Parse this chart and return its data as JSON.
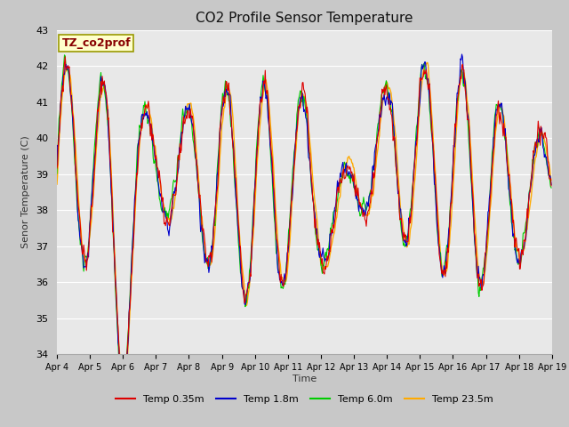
{
  "title": "CO2 Profile Sensor Temperature",
  "ylabel": "Senor Temperature (C)",
  "xlabel": "Time",
  "annotation": "TZ_co2prof",
  "ylim": [
    34.0,
    43.0
  ],
  "yticks": [
    34.0,
    35.0,
    36.0,
    37.0,
    38.0,
    39.0,
    40.0,
    41.0,
    42.0,
    43.0
  ],
  "xtick_labels": [
    "Apr 4",
    "Apr 5",
    "Apr 6",
    "Apr 7",
    "Apr 8",
    "Apr 9",
    "Apr 10",
    "Apr 11",
    "Apr 12",
    "Apr 13",
    "Apr 14",
    "Apr 15",
    "Apr 16",
    "Apr 17",
    "Apr 18",
    "Apr 19"
  ],
  "colors": {
    "Temp 0.35m": "#dd0000",
    "Temp 1.8m": "#0000cc",
    "Temp 6.0m": "#00cc00",
    "Temp 23.5m": "#ffaa00"
  },
  "legend_labels": [
    "Temp 0.35m",
    "Temp 1.8m",
    "Temp 6.0m",
    "Temp 23.5m"
  ],
  "fig_facecolor": "#c8c8c8",
  "plot_facecolor": "#e8e8e8",
  "grid_color": "#ffffff",
  "title_fontsize": 11,
  "annotation_fontcolor": "#880000",
  "annotation_bgcolor": "#ffffcc",
  "annotation_edgecolor": "#999900"
}
